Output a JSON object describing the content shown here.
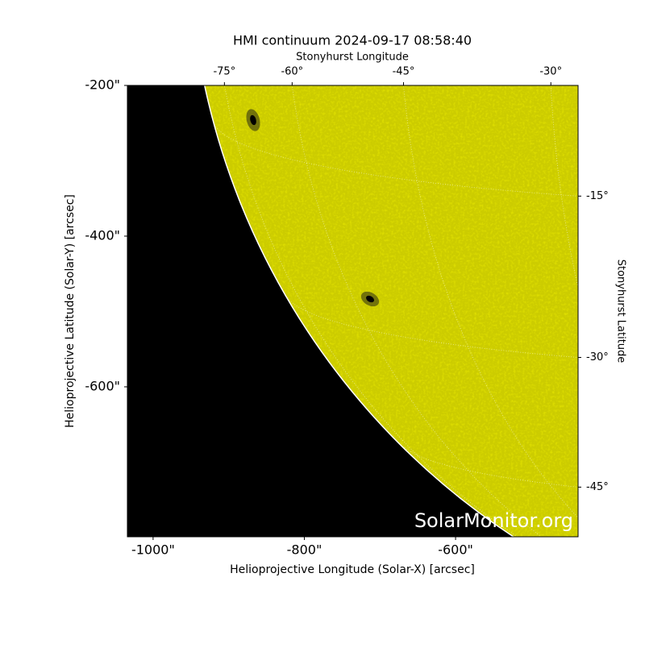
{
  "chart_data": {
    "type": "image",
    "title": "HMI continuum 2024-09-17 08:58:40",
    "xlabel": "Helioprojective Longitude (Solar-X) [arcsec]",
    "ylabel": "Helioprojective Latitude (Solar-Y) [arcsec]",
    "top_label": "Stonyhurst Longitude",
    "right_label": "Stonyhurst Latitude",
    "xlim": [
      -1034,
      -438
    ],
    "ylim": [
      -799,
      -200
    ],
    "xticks": [
      {
        "value": -1000,
        "label": "-1000\""
      },
      {
        "value": -800,
        "label": "-800\""
      },
      {
        "value": -600,
        "label": "-600\""
      }
    ],
    "yticks": [
      {
        "value": -200,
        "label": "-200\""
      },
      {
        "value": -400,
        "label": "-400\""
      },
      {
        "value": -600,
        "label": "-600\""
      }
    ],
    "top_ticks": [
      {
        "value": -75,
        "label": "-75°"
      },
      {
        "value": -60,
        "label": "-60°"
      },
      {
        "value": -45,
        "label": "-45°"
      },
      {
        "value": -30,
        "label": "-30°"
      }
    ],
    "right_ticks": [
      {
        "value": -15,
        "label": "-15°"
      },
      {
        "value": -30,
        "label": "-30°"
      },
      {
        "value": -45,
        "label": "-45°"
      }
    ],
    "watermark": "SolarMonitor.org",
    "color": "#cccc00",
    "grid": true
  }
}
